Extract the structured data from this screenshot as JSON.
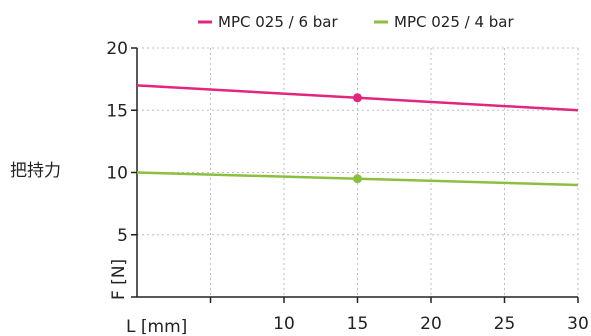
{
  "chart_data": {
    "type": "line",
    "title": "",
    "side_label": "把持力",
    "xlabel": "L [mm]",
    "ylabel": "F [N]",
    "xlim": [
      0,
      30
    ],
    "ylim": [
      0,
      20
    ],
    "x_ticks": [
      5,
      10,
      15,
      20,
      25,
      30
    ],
    "x_tick_labels": [
      "",
      "10",
      "15",
      "20",
      "25",
      "30"
    ],
    "y_ticks": [
      5,
      10,
      15,
      20
    ],
    "y_tick_labels": [
      "5",
      "10",
      "15",
      "20"
    ],
    "grid": true,
    "legend_position": "top",
    "series": [
      {
        "name": "MPC 025 / 6 bar",
        "color": "#e0267e",
        "x": [
          0,
          15,
          30
        ],
        "y": [
          17,
          16,
          15
        ],
        "marker_x": 15,
        "marker_y": 16
      },
      {
        "name": "MPC 025 / 4 bar",
        "color": "#8cbf3f",
        "x": [
          0,
          15,
          30
        ],
        "y": [
          10,
          9.5,
          9
        ],
        "marker_x": 15,
        "marker_y": 9.5
      }
    ]
  }
}
